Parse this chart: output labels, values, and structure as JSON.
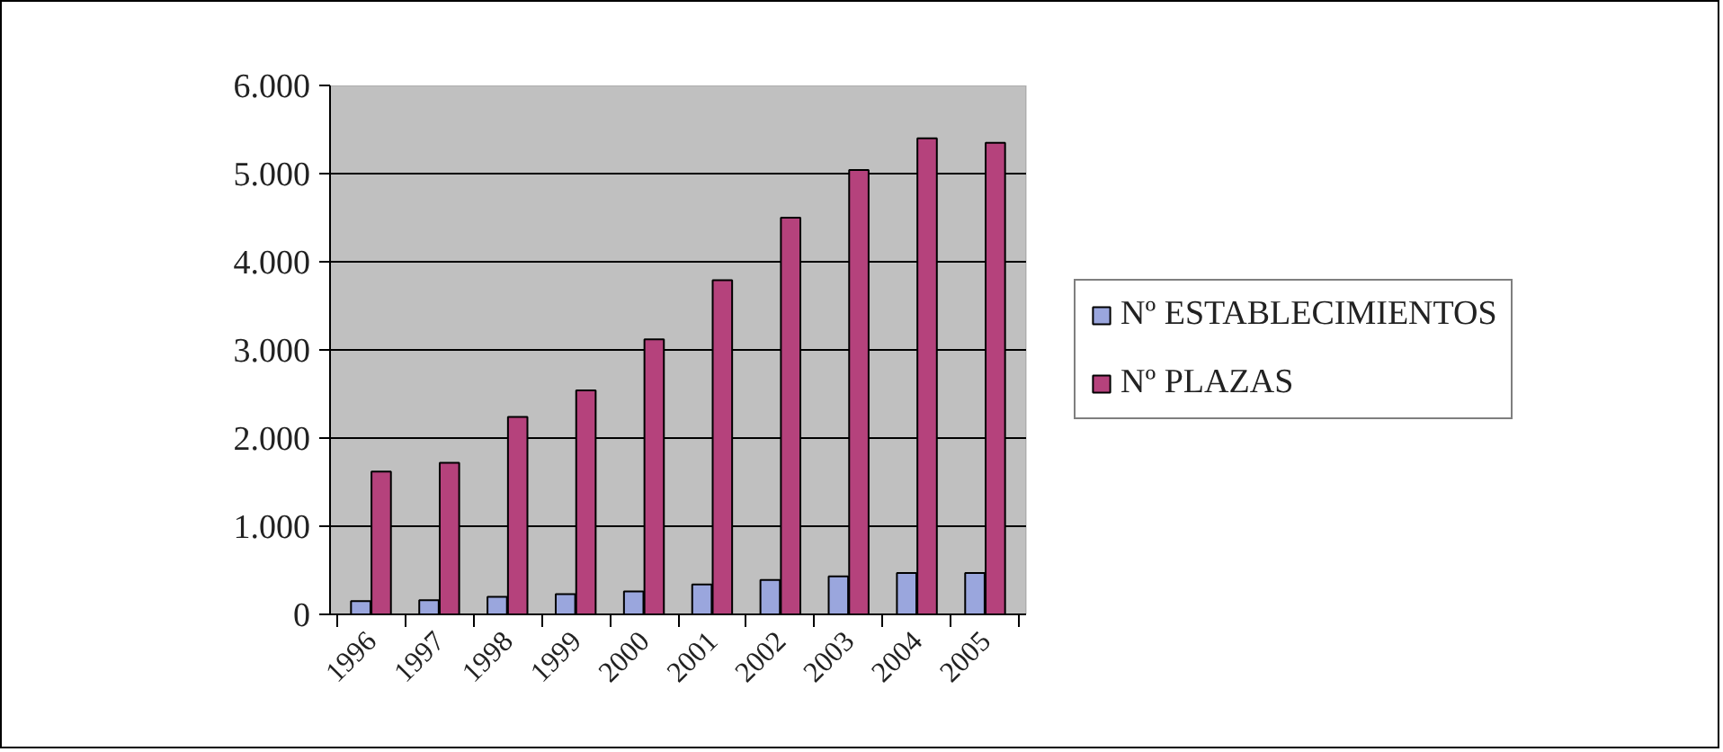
{
  "chart_data": {
    "type": "bar",
    "categories": [
      "1996",
      "1997",
      "1998",
      "1999",
      "2000",
      "2001",
      "2002",
      "2003",
      "2004",
      "2005"
    ],
    "series": [
      {
        "name": "Nº ESTABLECIMIENTOS",
        "color": "#9aa6dd",
        "values": [
          150,
          160,
          200,
          230,
          260,
          340,
          390,
          430,
          470,
          470
        ]
      },
      {
        "name": "Nº PLAZAS",
        "color": "#b5427c",
        "values": [
          1620,
          1720,
          2240,
          2540,
          3120,
          3790,
          4500,
          5040,
          5400,
          5350
        ]
      }
    ],
    "ylim": [
      0,
      6000
    ],
    "yticks": [
      0,
      {
        "value": 1000,
        "label": "1.000"
      },
      {
        "value": 2000,
        "label": "2.000"
      },
      {
        "value": 3000,
        "label": "3.000"
      },
      {
        "value": 4000,
        "label": "4.000"
      },
      {
        "value": 5000,
        "label": "5.000"
      },
      {
        "value": 6000,
        "label": "6.000"
      }
    ],
    "grid": "y",
    "legend": "right"
  }
}
